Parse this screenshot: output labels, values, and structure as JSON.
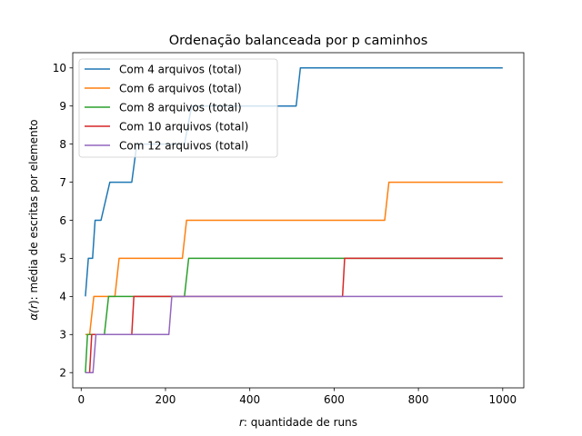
{
  "chart_data": {
    "type": "line",
    "title": "Ordenação balanceada por p caminhos",
    "xlabel_italic": "r",
    "xlabel_rest": ": quantidade de runs",
    "ylabel_alpha": "α(",
    "ylabel_italic": "r",
    "ylabel_rest": "): média de escritas por elemento",
    "xlim": [
      -20,
      1050
    ],
    "ylim": [
      1.6,
      10.4
    ],
    "x_ticks": [
      0,
      200,
      400,
      600,
      800,
      1000
    ],
    "y_ticks": [
      2,
      3,
      4,
      5,
      6,
      7,
      8,
      9,
      10
    ],
    "grid": false,
    "legend_position": "top-left",
    "series": [
      {
        "name": "Com 4 arquivos (total)",
        "color": "#1f77b4",
        "points": [
          [
            10,
            4
          ],
          [
            17,
            5
          ],
          [
            27,
            5
          ],
          [
            33,
            6
          ],
          [
            47,
            6
          ],
          [
            68,
            7
          ],
          [
            120,
            7
          ],
          [
            132,
            8
          ],
          [
            245,
            8
          ],
          [
            262,
            9
          ],
          [
            510,
            9
          ],
          [
            520,
            10
          ],
          [
            1000,
            10
          ]
        ]
      },
      {
        "name": "Com 6 arquivos (total)",
        "color": "#ff7f0e",
        "points": [
          [
            10,
            3
          ],
          [
            20,
            3
          ],
          [
            30,
            4
          ],
          [
            80,
            4
          ],
          [
            90,
            5
          ],
          [
            240,
            5
          ],
          [
            250,
            6
          ],
          [
            720,
            6
          ],
          [
            730,
            7
          ],
          [
            1000,
            7
          ]
        ]
      },
      {
        "name": "Com 8 arquivos (total)",
        "color": "#2ca02c",
        "points": [
          [
            10,
            2
          ],
          [
            15,
            3
          ],
          [
            55,
            3
          ],
          [
            65,
            4
          ],
          [
            245,
            4
          ],
          [
            255,
            5
          ],
          [
            1000,
            5
          ]
        ]
      },
      {
        "name": "Com 10 arquivos (total)",
        "color": "#d62728",
        "points": [
          [
            10,
            2
          ],
          [
            20,
            2
          ],
          [
            25,
            3
          ],
          [
            120,
            3
          ],
          [
            125,
            4
          ],
          [
            620,
            4
          ],
          [
            625,
            5
          ],
          [
            1000,
            5
          ]
        ]
      },
      {
        "name": "Com 12 arquivos (total)",
        "color": "#9467bd",
        "points": [
          [
            10,
            2
          ],
          [
            28,
            2
          ],
          [
            35,
            3
          ],
          [
            208,
            3
          ],
          [
            215,
            4
          ],
          [
            1000,
            4
          ]
        ]
      }
    ]
  }
}
